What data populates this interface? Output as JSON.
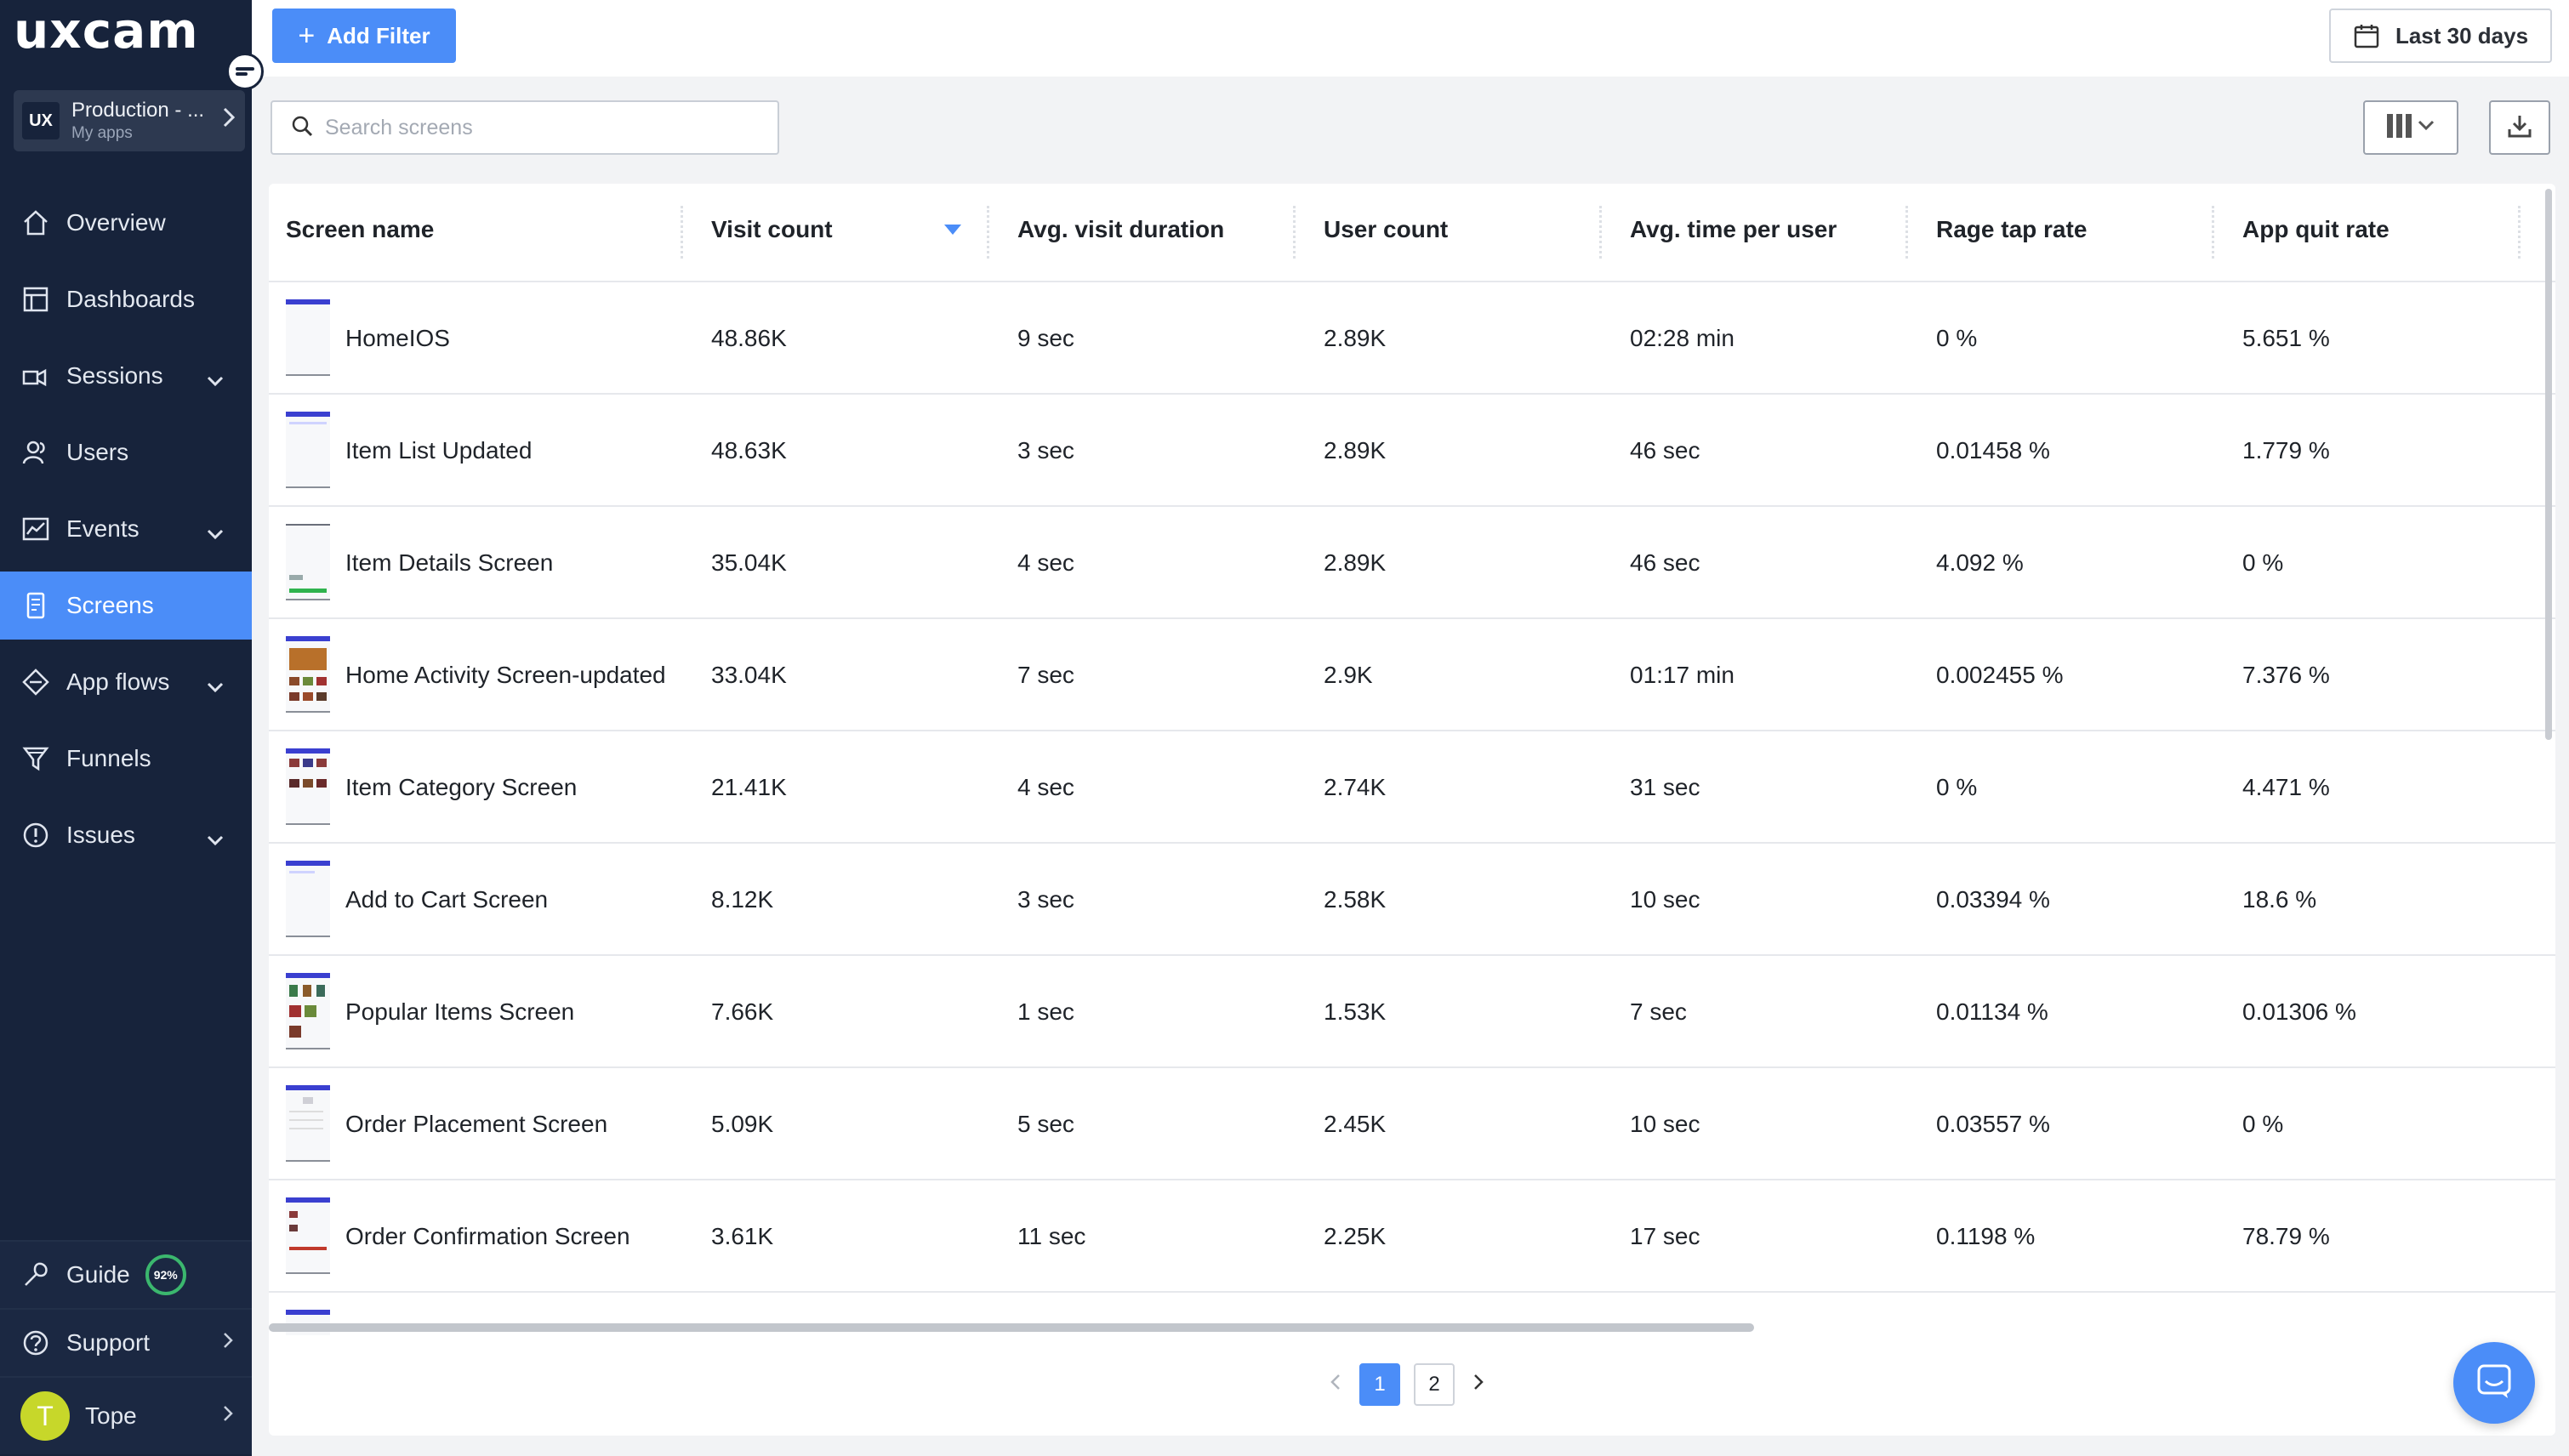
{
  "brand": {
    "logo_text": "uxcam",
    "accent": "#4b8df8",
    "sidebar_bg": "#17233b"
  },
  "app_switcher": {
    "logo": "UX",
    "name": "Production - ...",
    "sub": "My apps",
    "icon": "chevron-right-icon"
  },
  "nav": [
    {
      "label": "Overview",
      "icon": "home-icon"
    },
    {
      "label": "Dashboards",
      "icon": "dashboard-icon"
    },
    {
      "label": "Sessions",
      "icon": "sessions-icon",
      "expandable": true
    },
    {
      "label": "Users",
      "icon": "users-icon"
    },
    {
      "label": "Events",
      "icon": "events-icon",
      "expandable": true
    },
    {
      "label": "Screens",
      "icon": "screens-icon",
      "active": true
    },
    {
      "label": "App flows",
      "icon": "app-flows-icon",
      "expandable": true
    },
    {
      "label": "Funnels",
      "icon": "funnel-icon"
    },
    {
      "label": "Issues",
      "icon": "issues-icon",
      "expandable": true
    }
  ],
  "bottom": {
    "guide": {
      "label": "Guide",
      "progress_text": "92%",
      "progress": 0.92
    },
    "support": {
      "label": "Support"
    },
    "user": {
      "initial": "T",
      "name": "Tope"
    }
  },
  "toolbar": {
    "add_filter_label": "Add Filter",
    "date_range_label": "Last 30 days",
    "search_placeholder": "Search screens"
  },
  "table": {
    "columns": [
      "Screen name",
      "Visit count",
      "Avg. visit duration",
      "User count",
      "Avg. time per user",
      "Rage tap rate",
      "App quit rate"
    ],
    "sorted_column": "Visit count",
    "rows": [
      {
        "name": "HomeIOS",
        "visits": "48.86K",
        "duration": "9 sec",
        "users": "2.89K",
        "time_per_user": "02:28 min",
        "rage": "0 %",
        "quit": "5.651 %"
      },
      {
        "name": "Item List Updated",
        "visits": "48.63K",
        "duration": "3 sec",
        "users": "2.89K",
        "time_per_user": "46 sec",
        "rage": "0.01458 %",
        "quit": "1.779 %"
      },
      {
        "name": "Item Details Screen",
        "visits": "35.04K",
        "duration": "4 sec",
        "users": "2.89K",
        "time_per_user": "46 sec",
        "rage": "4.092 %",
        "quit": "0 %"
      },
      {
        "name": "Home Activity Screen-updated",
        "visits": "33.04K",
        "duration": "7 sec",
        "users": "2.9K",
        "time_per_user": "01:17 min",
        "rage": "0.002455 %",
        "quit": "7.376 %"
      },
      {
        "name": "Item Category Screen",
        "visits": "21.41K",
        "duration": "4 sec",
        "users": "2.74K",
        "time_per_user": "31 sec",
        "rage": "0 %",
        "quit": "4.471 %"
      },
      {
        "name": "Add to Cart Screen",
        "visits": "8.12K",
        "duration": "3 sec",
        "users": "2.58K",
        "time_per_user": "10 sec",
        "rage": "0.03394 %",
        "quit": "18.6 %"
      },
      {
        "name": "Popular Items Screen",
        "visits": "7.66K",
        "duration": "1 sec",
        "users": "1.53K",
        "time_per_user": "7 sec",
        "rage": "0.01134 %",
        "quit": "0.01306 %"
      },
      {
        "name": "Order Placement Screen",
        "visits": "5.09K",
        "duration": "5 sec",
        "users": "2.45K",
        "time_per_user": "10 sec",
        "rage": "0.03557 %",
        "quit": "0 %"
      },
      {
        "name": "Order Confirmation Screen",
        "visits": "3.61K",
        "duration": "11 sec",
        "users": "2.25K",
        "time_per_user": "17 sec",
        "rage": "0.1198 %",
        "quit": "78.79 %"
      }
    ]
  },
  "pagination": {
    "pages": [
      "1",
      "2"
    ],
    "current": "1"
  }
}
